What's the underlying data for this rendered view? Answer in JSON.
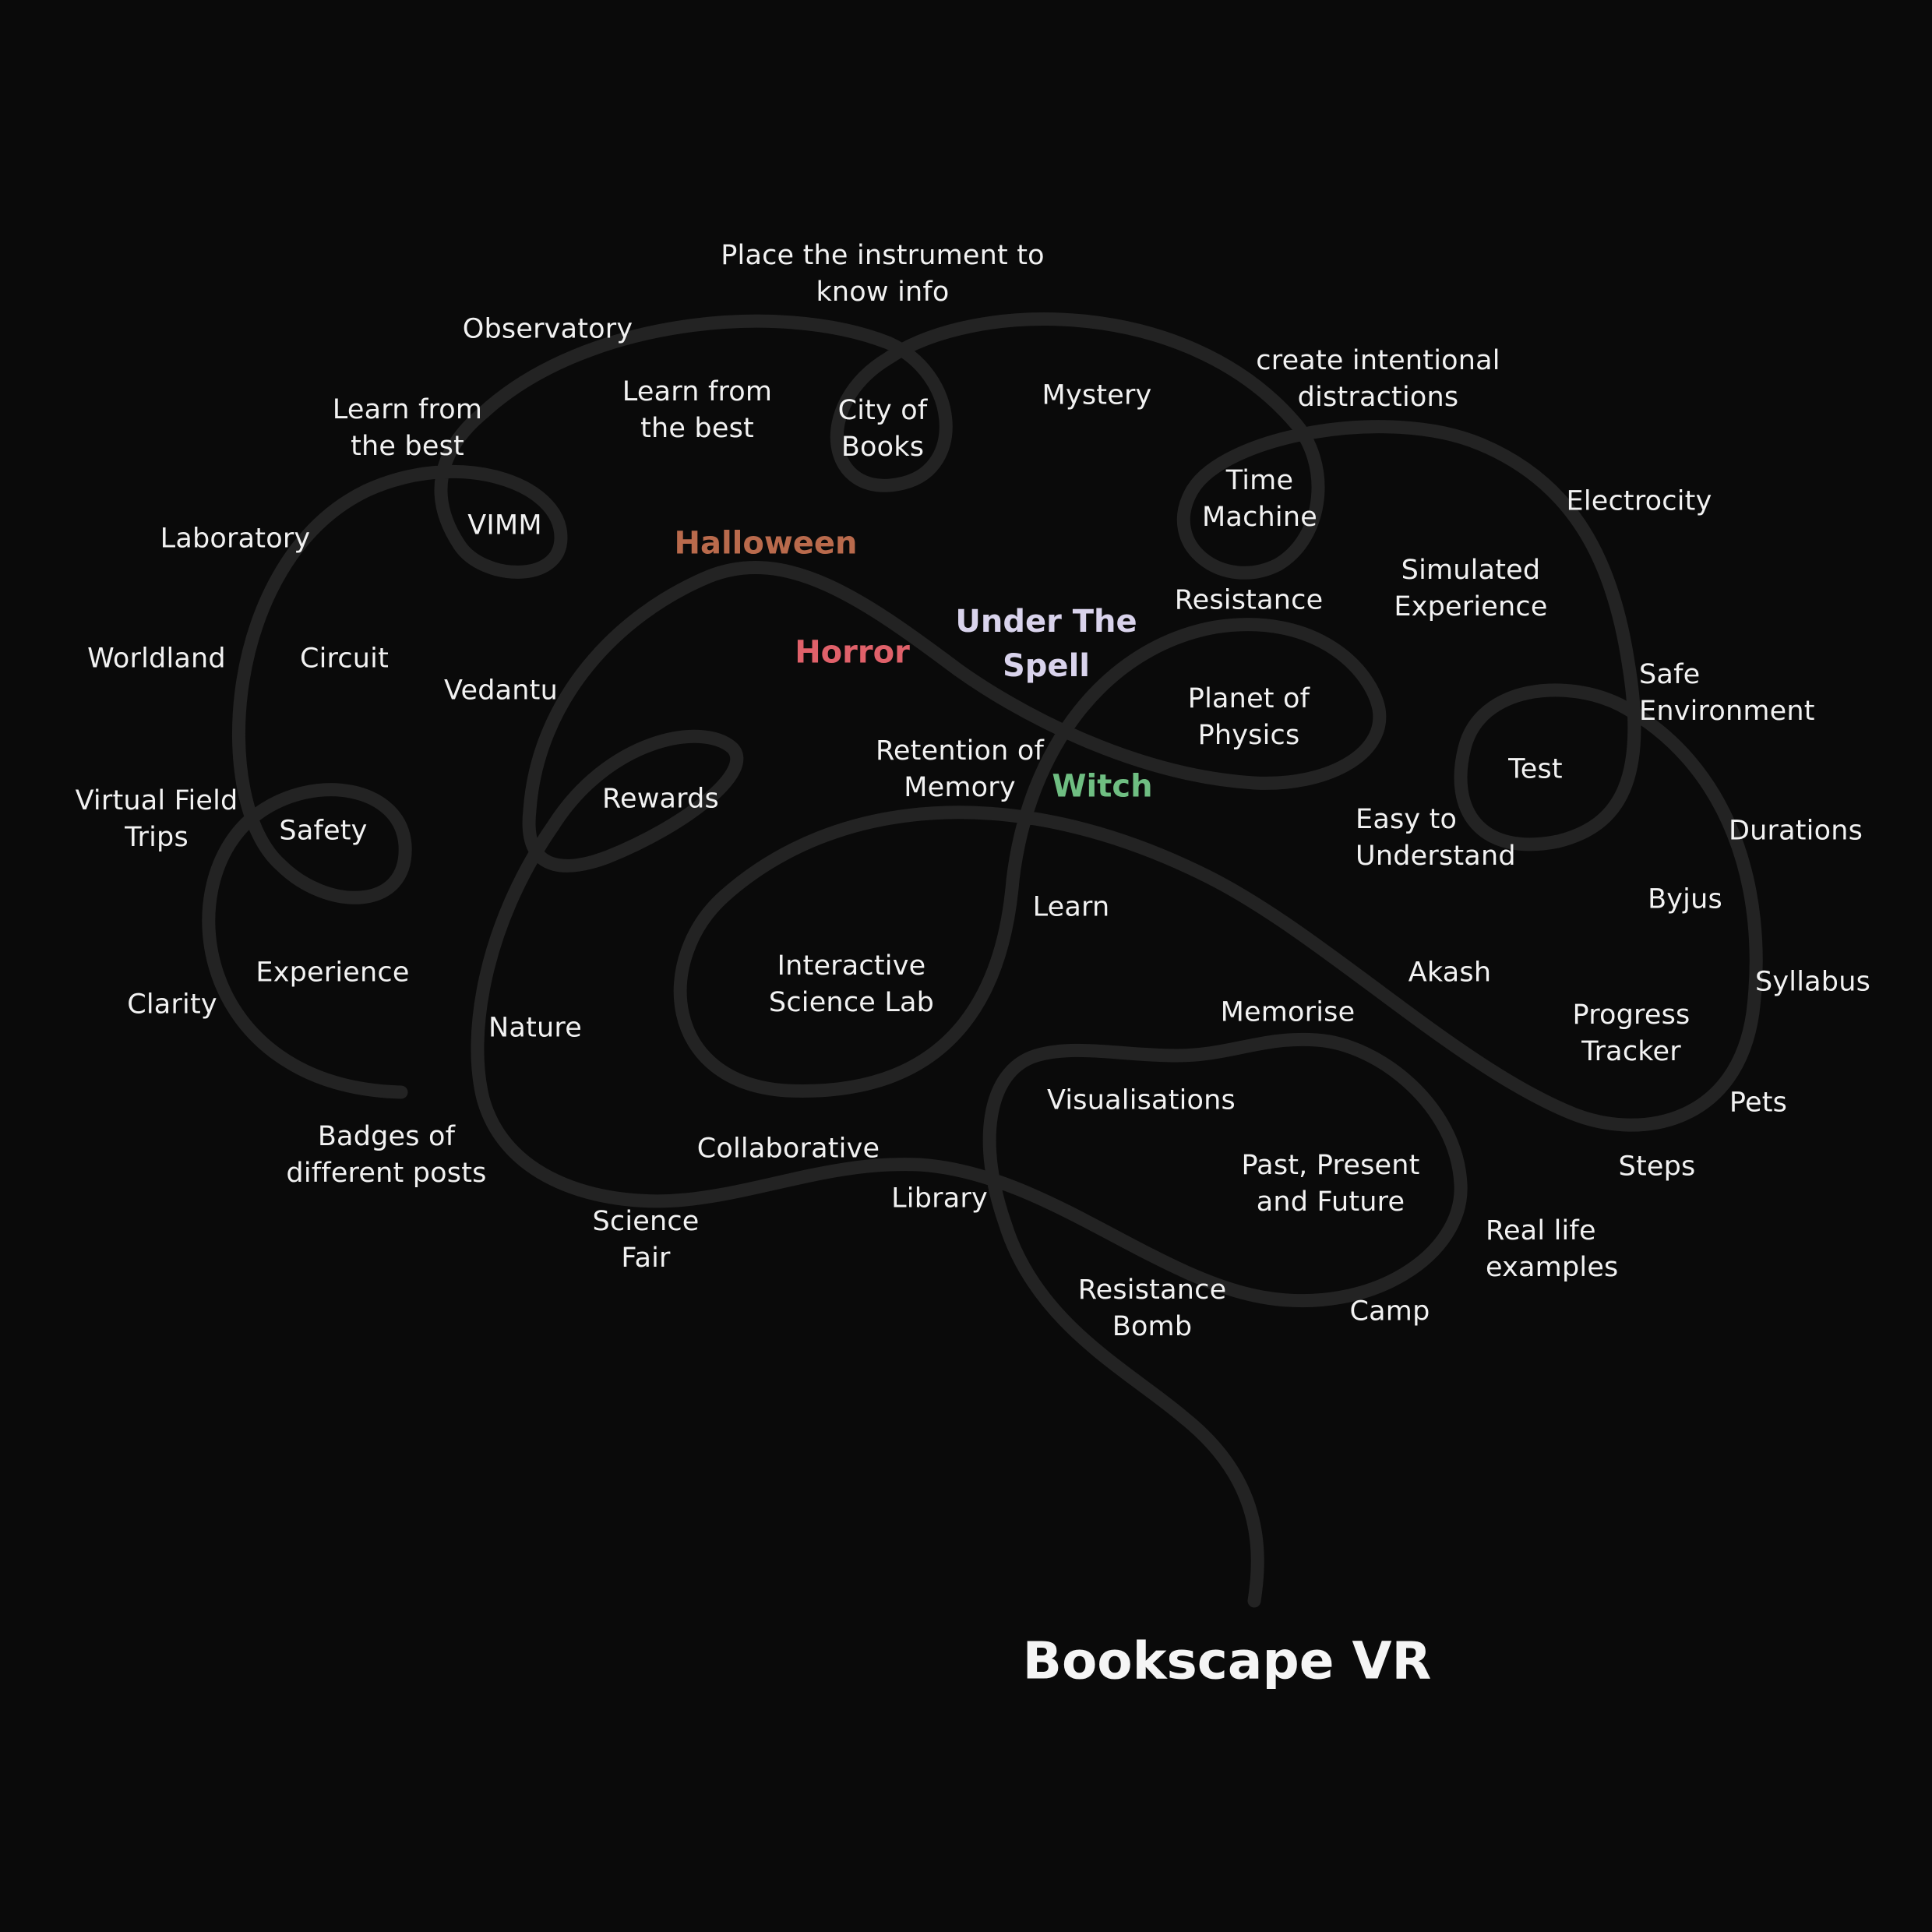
{
  "title": "Bookscape VR",
  "colors": {
    "background": "#0a0a0a",
    "stroke": "#232323",
    "text": "#f2f2f2",
    "halloween": "#b96a4c",
    "horror": "#e0616a",
    "under_the_spell": "#d9d3ec",
    "witch": "#6fbe82"
  },
  "themes": {
    "halloween": "Halloween",
    "horror": "Horror",
    "under_the_spell": "Under The\nSpell",
    "witch": "Witch"
  },
  "labels": {
    "place_instrument": "Place the instrument to\nknow info",
    "observatory": "Observatory",
    "learn_best_left": "Learn from\nthe best",
    "learn_best_center": "Learn from\nthe best",
    "city_of_books": "City of\nBooks",
    "mystery": "Mystery",
    "create_distractions": "create intentional\ndistractions",
    "time_machine": "Time\nMachine",
    "electrocity": "Electrocity",
    "laboratory": "Laboratory",
    "vimm": "VIMM",
    "simulated_experience": "Simulated\nExperience",
    "resistance": "Resistance",
    "worldland": "Worldland",
    "circuit": "Circuit",
    "vedantu": "Vedantu",
    "planet_of_physics": "Planet of\nPhysics",
    "safe_environment": "Safe\nEnvironment",
    "retention_of_memory": "Retention of\nMemory",
    "test": "Test",
    "virtual_field_trips": "Virtual Field\nTrips",
    "safety": "Safety",
    "rewards": "Rewards",
    "easy_to_understand": "Easy to\nUnderstand",
    "durations": "Durations",
    "learn": "Learn",
    "byjus": "Byjus",
    "experience": "Experience",
    "interactive_science_lab": "Interactive\nScience Lab",
    "akash": "Akash",
    "clarity": "Clarity",
    "syllabus": "Syllabus",
    "memorise": "Memorise",
    "progress_tracker": "Progress\nTracker",
    "nature": "Nature",
    "visualisations": "Visualisations",
    "pets": "Pets",
    "badges": "Badges of\ndifferent posts",
    "collaborative": "Collaborative",
    "past_present_future": "Past, Present\nand Future",
    "steps": "Steps",
    "library": "Library",
    "science_fair": "Science\nFair",
    "real_life_examples": "Real life\nexamples",
    "resistance_bomb": "Resistance\nBomb",
    "camp": "Camp"
  }
}
